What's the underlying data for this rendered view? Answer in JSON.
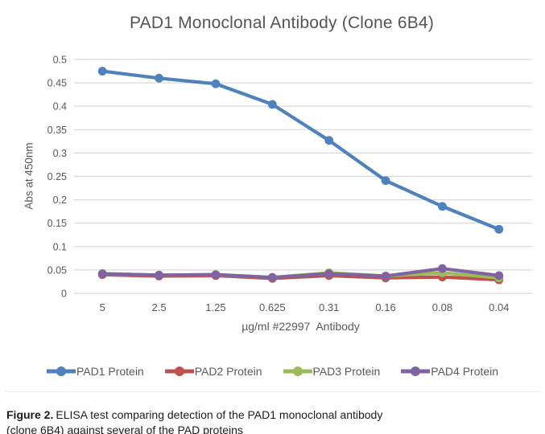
{
  "chart_data": {
    "type": "line",
    "title": "PAD1 Monoclonal Antibody (Clone 6B4)",
    "categories": [
      "5",
      "2.5",
      "1.25",
      "0.625",
      "0.31",
      "0.16",
      "0.08",
      "0.04"
    ],
    "series": [
      {
        "name": "PAD1 Protein",
        "color": "#4F81BD",
        "values": [
          0.475,
          0.46,
          0.448,
          0.404,
          0.327,
          0.241,
          0.186,
          0.137
        ]
      },
      {
        "name": "PAD2 Protein",
        "color": "#C0504D",
        "values": [
          0.04,
          0.037,
          0.038,
          0.032,
          0.038,
          0.033,
          0.035,
          0.029
        ]
      },
      {
        "name": "PAD3 Protein",
        "color": "#9BBB59",
        "values": [
          0.042,
          0.039,
          0.04,
          0.034,
          0.044,
          0.037,
          0.044,
          0.033
        ]
      },
      {
        "name": "PAD4 Protein",
        "color": "#8064A2",
        "values": [
          0.042,
          0.039,
          0.04,
          0.034,
          0.042,
          0.037,
          0.053,
          0.038
        ]
      }
    ],
    "xlabel": "µg/ml #22997  Antibody",
    "ylabel": "Abs at 450nm",
    "ylim": [
      0,
      0.5
    ],
    "yticks": [
      "0",
      "0.05",
      "0.1",
      "0.15",
      "0.2",
      "0.25",
      "0.3",
      "0.35",
      "0.4",
      "0.45",
      "0.5"
    ],
    "grid": true,
    "legend_position": "bottom"
  },
  "caption": {
    "label": "Figure 2.",
    "text": "ELISA test comparing detection of the PAD1 monoclonal antibody (clone 6B4) against several of the PAD proteins"
  },
  "colors": {
    "gridline": "#d9d9d9",
    "axis_text": "#595959",
    "title_text": "#555555",
    "caption_text": "#1c1c1c",
    "divider": "#ececec",
    "background": "#ffffff"
  }
}
